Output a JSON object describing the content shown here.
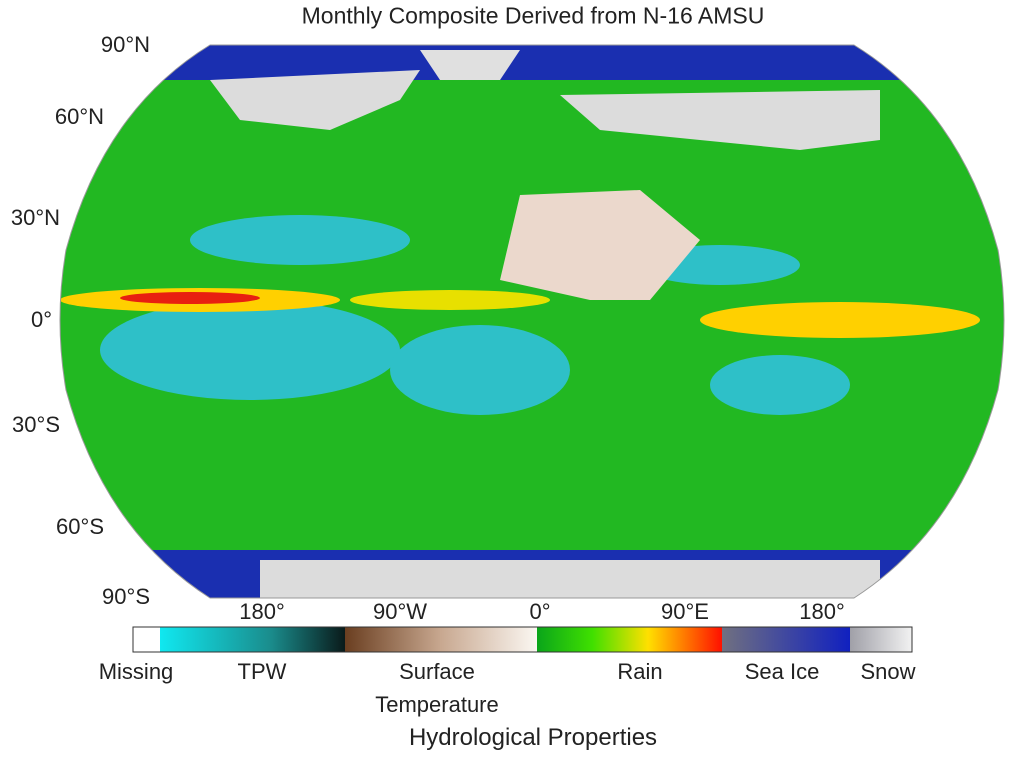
{
  "title": "Monthly Composite Derived from N-16 AMSU",
  "latitude_labels": [
    "90°N",
    "60°N",
    "30°N",
    "0°",
    "30°S",
    "60°S",
    "90°S"
  ],
  "longitude_labels": [
    "180°",
    "90°W",
    "0°",
    "90°E",
    "180°"
  ],
  "legend": {
    "labels": [
      "Missing",
      "TPW",
      "Surface Temperature",
      "Rain",
      "Sea Ice",
      "Snow"
    ],
    "title": "Hydrological Properties"
  }
}
